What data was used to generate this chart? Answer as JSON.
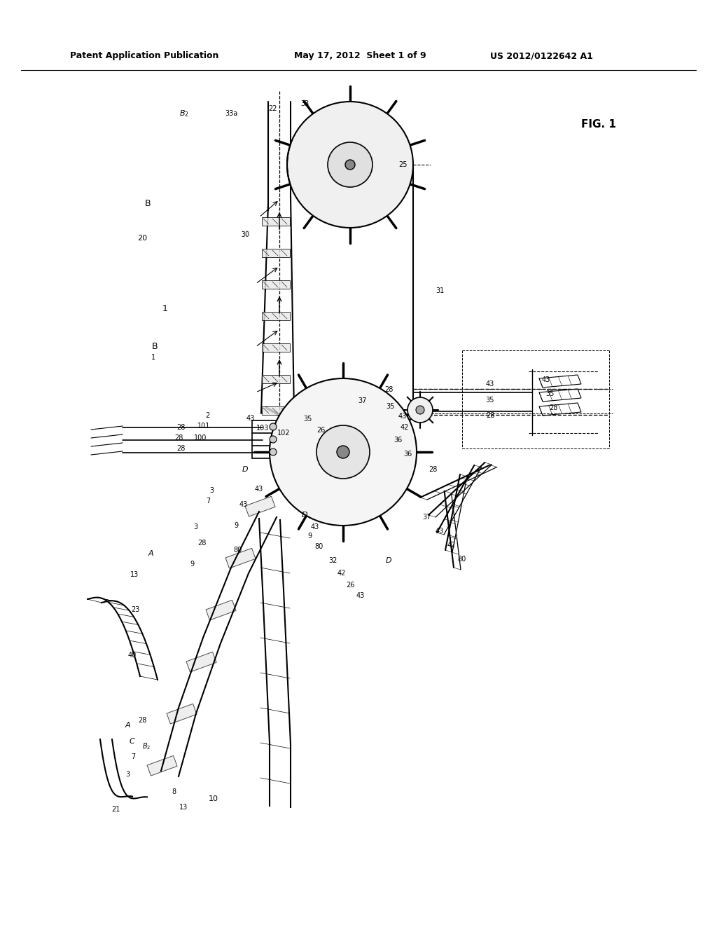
{
  "title_left": "Patent Application Publication",
  "title_mid": "May 17, 2012  Sheet 1 of 9",
  "title_right": "US 2012/0122642 A1",
  "fig_label": "FIG. 1",
  "bg_color": "#ffffff",
  "line_color": "#000000",
  "text_color": "#000000",
  "fig_width": 10.24,
  "fig_height": 13.2,
  "dpi": 100
}
